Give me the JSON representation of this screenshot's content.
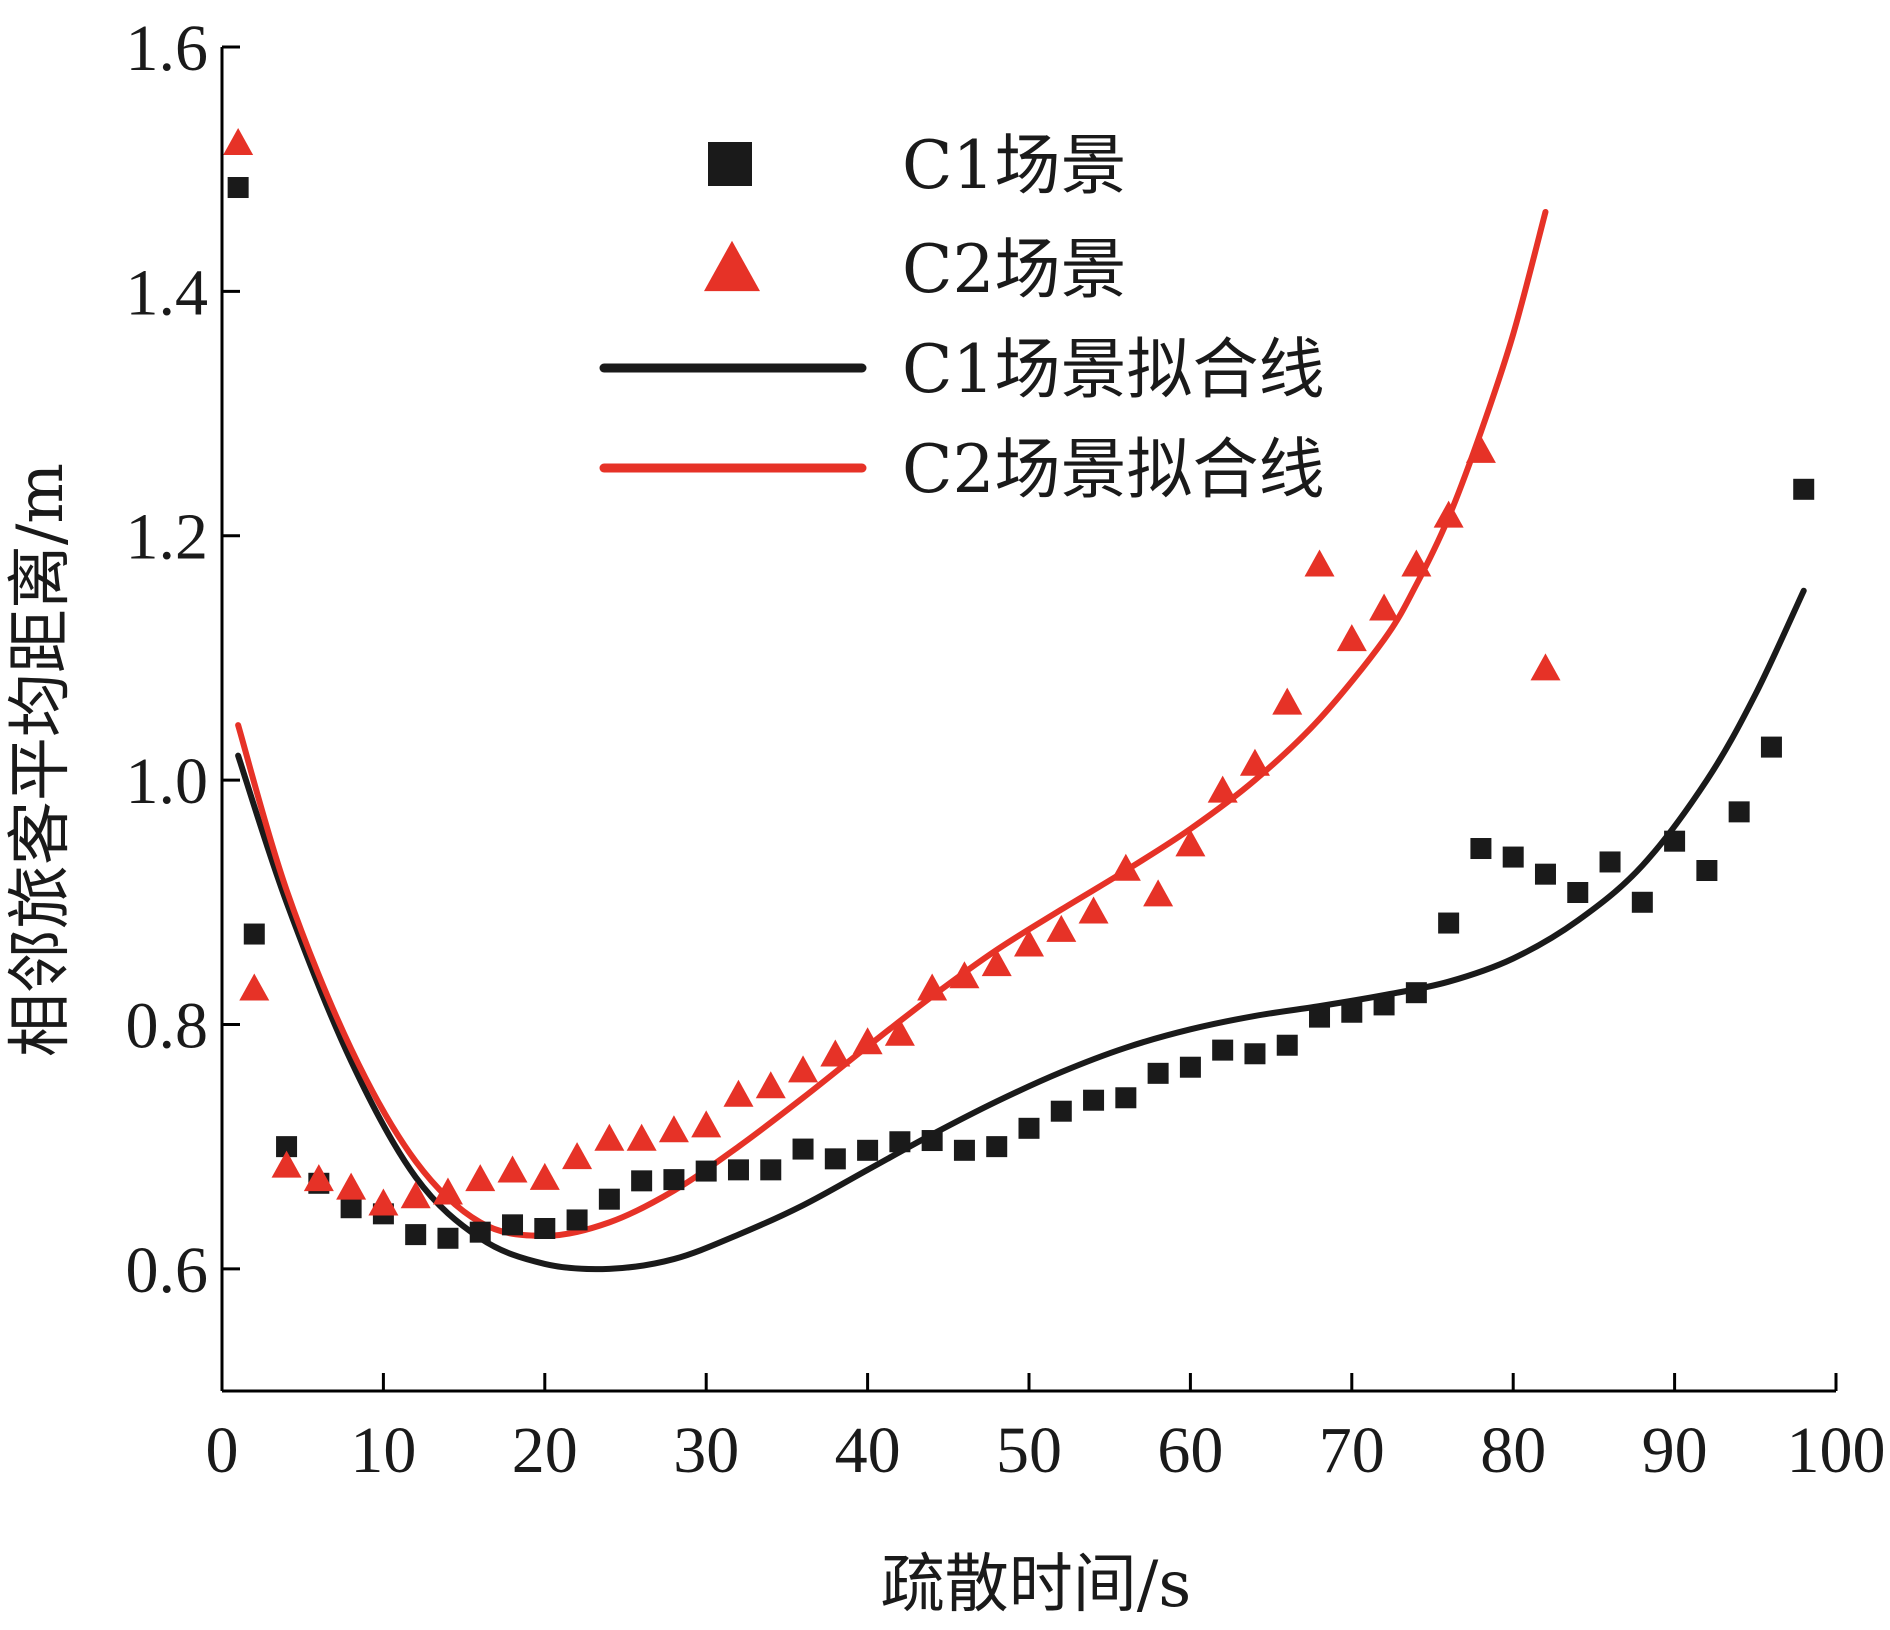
{
  "chart_data": {
    "type": "scatter",
    "xlabel": "疏散时间/s",
    "ylabel": "相邻旅客平均距离/m",
    "xlim": [
      0,
      100
    ],
    "ylim": [
      0.5,
      1.6
    ],
    "xticks": [
      0,
      10,
      20,
      30,
      40,
      50,
      60,
      70,
      80,
      90,
      100
    ],
    "xtick_labels": [
      "0",
      "10",
      "20",
      "30",
      "40",
      "50",
      "60",
      "70",
      "80",
      "90",
      "100"
    ],
    "yticks": [
      0.6,
      0.8,
      1.0,
      1.2,
      1.4,
      1.6
    ],
    "ytick_labels": [
      "0.6",
      "0.8",
      "1.0",
      "1.2",
      "1.4",
      "1.6"
    ],
    "legend_position": "top-center",
    "grid": false,
    "series": [
      {
        "name": "C1场景",
        "kind": "scatter",
        "marker": "square",
        "color": "#1a1a1a",
        "points": [
          [
            1,
            1.485
          ],
          [
            2,
            0.874
          ],
          [
            4,
            0.7
          ],
          [
            6,
            0.67
          ],
          [
            8,
            0.65
          ],
          [
            10,
            0.645
          ],
          [
            12,
            0.628
          ],
          [
            14,
            0.625
          ],
          [
            16,
            0.63
          ],
          [
            18,
            0.636
          ],
          [
            20,
            0.633
          ],
          [
            22,
            0.64
          ],
          [
            24,
            0.657
          ],
          [
            26,
            0.672
          ],
          [
            28,
            0.673
          ],
          [
            30,
            0.68
          ],
          [
            32,
            0.681
          ],
          [
            34,
            0.681
          ],
          [
            36,
            0.698
          ],
          [
            38,
            0.69
          ],
          [
            40,
            0.697
          ],
          [
            42,
            0.704
          ],
          [
            44,
            0.705
          ],
          [
            46,
            0.697
          ],
          [
            48,
            0.7
          ],
          [
            50,
            0.715
          ],
          [
            52,
            0.729
          ],
          [
            54,
            0.738
          ],
          [
            56,
            0.74
          ],
          [
            58,
            0.76
          ],
          [
            60,
            0.765
          ],
          [
            62,
            0.779
          ],
          [
            64,
            0.776
          ],
          [
            66,
            0.783
          ],
          [
            68,
            0.806
          ],
          [
            70,
            0.81
          ],
          [
            72,
            0.816
          ],
          [
            74,
            0.826
          ],
          [
            76,
            0.883
          ],
          [
            78,
            0.944
          ],
          [
            80,
            0.937
          ],
          [
            82,
            0.923
          ],
          [
            84,
            0.908
          ],
          [
            86,
            0.933
          ],
          [
            88,
            0.9
          ],
          [
            90,
            0.95
          ],
          [
            92,
            0.926
          ],
          [
            94,
            0.974
          ],
          [
            96,
            1.027
          ],
          [
            98,
            1.238
          ]
        ]
      },
      {
        "name": "C2场景",
        "kind": "scatter",
        "marker": "triangle",
        "color": "#e63227",
        "points": [
          [
            1,
            1.52
          ],
          [
            2,
            0.828
          ],
          [
            4,
            0.683
          ],
          [
            6,
            0.672
          ],
          [
            8,
            0.665
          ],
          [
            10,
            0.652
          ],
          [
            12,
            0.658
          ],
          [
            14,
            0.661
          ],
          [
            16,
            0.672
          ],
          [
            18,
            0.679
          ],
          [
            20,
            0.673
          ],
          [
            22,
            0.69
          ],
          [
            24,
            0.705
          ],
          [
            26,
            0.705
          ],
          [
            28,
            0.712
          ],
          [
            30,
            0.716
          ],
          [
            32,
            0.741
          ],
          [
            34,
            0.748
          ],
          [
            36,
            0.761
          ],
          [
            38,
            0.774
          ],
          [
            40,
            0.784
          ],
          [
            42,
            0.791
          ],
          [
            44,
            0.828
          ],
          [
            46,
            0.838
          ],
          [
            48,
            0.848
          ],
          [
            50,
            0.864
          ],
          [
            52,
            0.876
          ],
          [
            54,
            0.891
          ],
          [
            56,
            0.926
          ],
          [
            58,
            0.905
          ],
          [
            60,
            0.946
          ],
          [
            62,
            0.99
          ],
          [
            64,
            1.012
          ],
          [
            66,
            1.062
          ],
          [
            68,
            1.175
          ],
          [
            70,
            1.114
          ],
          [
            72,
            1.139
          ],
          [
            74,
            1.175
          ],
          [
            76,
            1.215
          ],
          [
            78,
            1.268
          ],
          [
            82,
            1.09
          ]
        ]
      },
      {
        "name": "C1场景拟合线",
        "kind": "line",
        "color": "#1a1a1a",
        "points": [
          [
            1,
            1.02
          ],
          [
            4,
            0.9
          ],
          [
            8,
            0.77
          ],
          [
            12,
            0.675
          ],
          [
            16,
            0.625
          ],
          [
            20,
            0.604
          ],
          [
            24,
            0.6
          ],
          [
            28,
            0.608
          ],
          [
            32,
            0.628
          ],
          [
            36,
            0.652
          ],
          [
            40,
            0.681
          ],
          [
            44,
            0.71
          ],
          [
            48,
            0.737
          ],
          [
            52,
            0.761
          ],
          [
            56,
            0.781
          ],
          [
            60,
            0.796
          ],
          [
            64,
            0.807
          ],
          [
            68,
            0.815
          ],
          [
            72,
            0.824
          ],
          [
            76,
            0.835
          ],
          [
            80,
            0.854
          ],
          [
            84,
            0.885
          ],
          [
            88,
            0.93
          ],
          [
            92,
            1.0
          ],
          [
            95,
            1.07
          ],
          [
            98,
            1.155
          ]
        ]
      },
      {
        "name": "C2场景拟合线",
        "kind": "line",
        "color": "#e63227",
        "points": [
          [
            1,
            1.045
          ],
          [
            4,
            0.91
          ],
          [
            8,
            0.78
          ],
          [
            12,
            0.688
          ],
          [
            16,
            0.638
          ],
          [
            20,
            0.627
          ],
          [
            24,
            0.638
          ],
          [
            28,
            0.664
          ],
          [
            32,
            0.7
          ],
          [
            36,
            0.74
          ],
          [
            40,
            0.782
          ],
          [
            44,
            0.823
          ],
          [
            48,
            0.861
          ],
          [
            52,
            0.894
          ],
          [
            56,
            0.926
          ],
          [
            60,
            0.96
          ],
          [
            64,
            1.0
          ],
          [
            68,
            1.05
          ],
          [
            72,
            1.115
          ],
          [
            74,
            1.16
          ],
          [
            76,
            1.215
          ],
          [
            78,
            1.285
          ],
          [
            80,
            1.365
          ],
          [
            82,
            1.465
          ]
        ]
      }
    ]
  }
}
